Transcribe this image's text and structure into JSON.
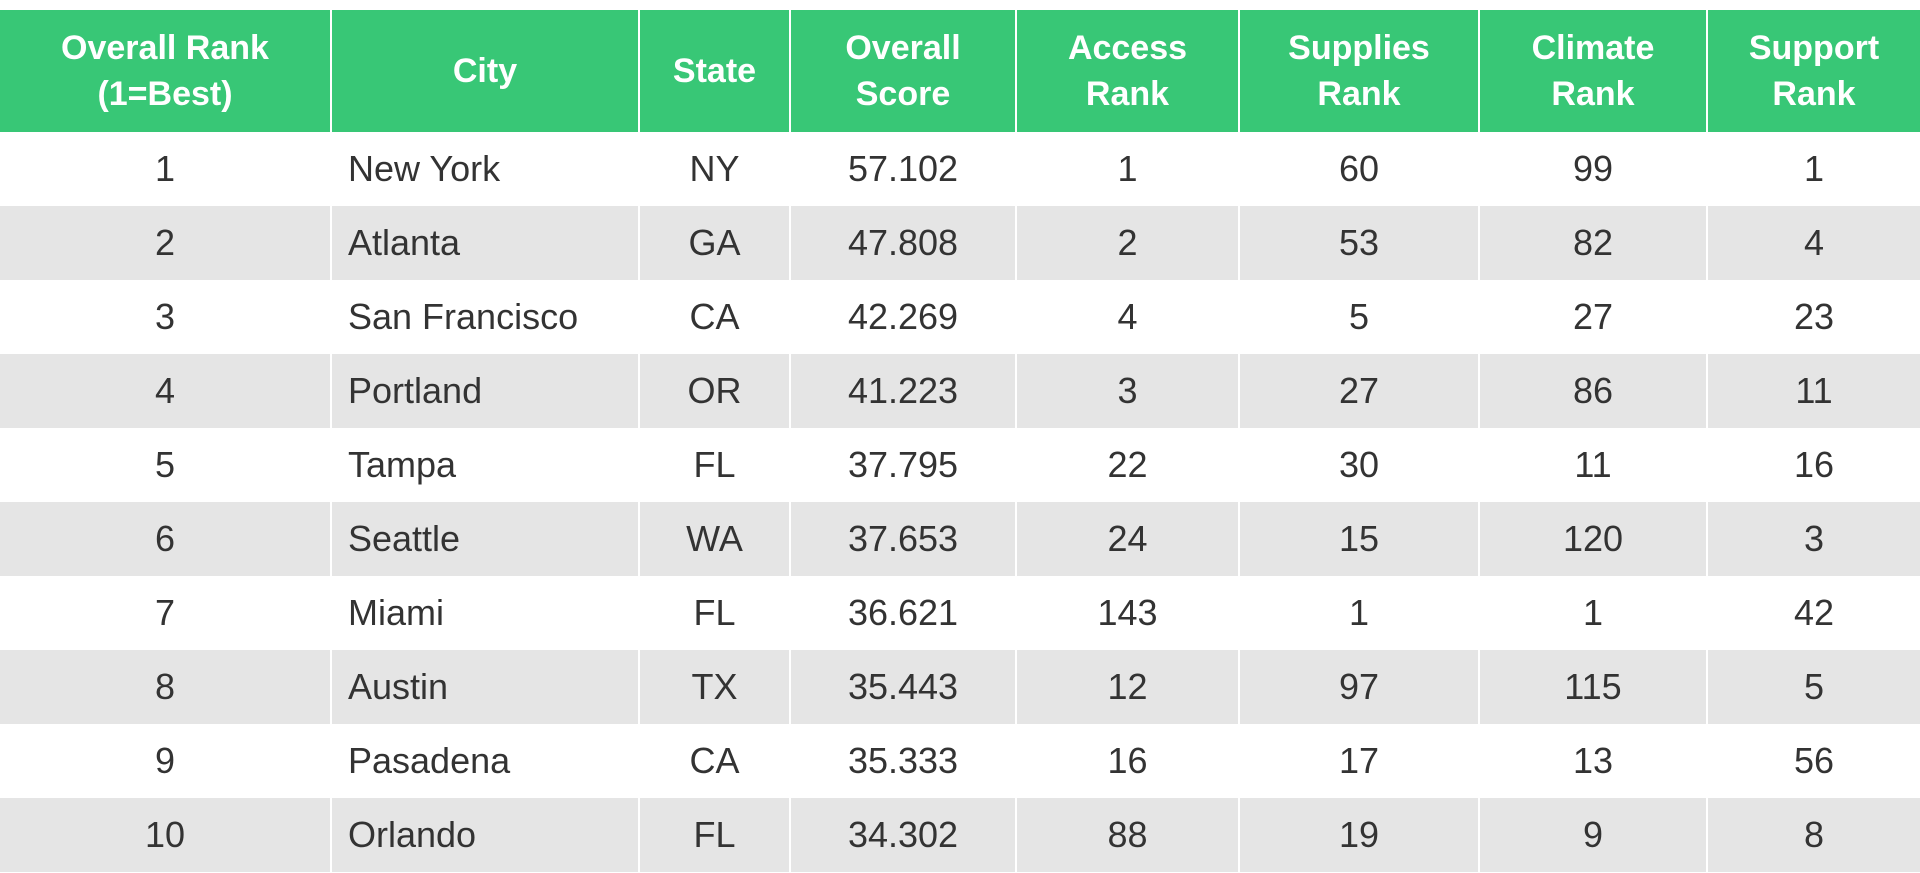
{
  "table": {
    "header": [
      "Overall Rank (1=Best)",
      "City",
      "State",
      "Overall Score",
      "Access Rank",
      "Supplies Rank",
      "Climate Rank",
      "Support Rank"
    ],
    "rows": [
      [
        "1",
        "New York",
        "NY",
        "57.102",
        "1",
        "60",
        "99",
        "1"
      ],
      [
        "2",
        "Atlanta",
        "GA",
        "47.808",
        "2",
        "53",
        "82",
        "4"
      ],
      [
        "3",
        "San Francisco",
        "CA",
        "42.269",
        "4",
        "5",
        "27",
        "23"
      ],
      [
        "4",
        "Portland",
        "OR",
        "41.223",
        "3",
        "27",
        "86",
        "11"
      ],
      [
        "5",
        "Tampa",
        "FL",
        "37.795",
        "22",
        "30",
        "11",
        "16"
      ],
      [
        "6",
        "Seattle",
        "WA",
        "37.653",
        "24",
        "15",
        "120",
        "3"
      ],
      [
        "7",
        "Miami",
        "FL",
        "36.621",
        "143",
        "1",
        "1",
        "42"
      ],
      [
        "8",
        "Austin",
        "TX",
        "35.443",
        "12",
        "97",
        "115",
        "5"
      ],
      [
        "9",
        "Pasadena",
        "CA",
        "35.333",
        "16",
        "17",
        "13",
        "56"
      ],
      [
        "10",
        "Orlando",
        "FL",
        "34.302",
        "88",
        "19",
        "9",
        "8"
      ]
    ]
  }
}
